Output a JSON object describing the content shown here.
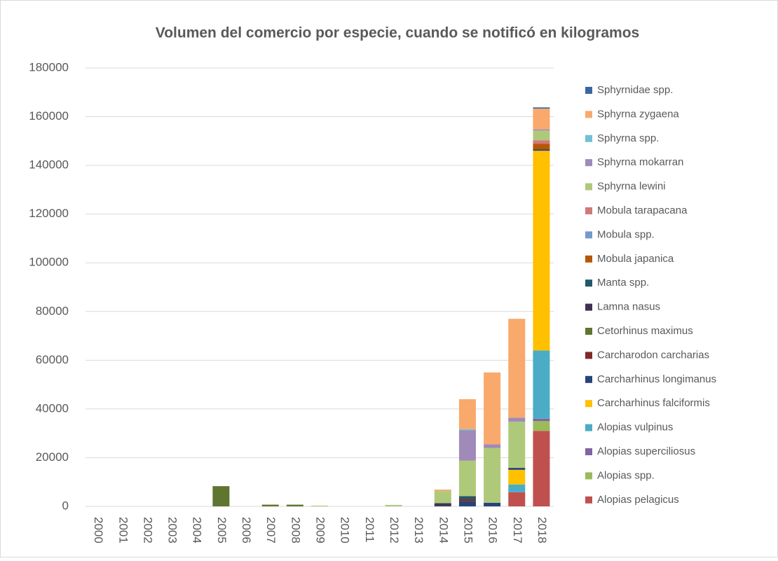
{
  "chart_data": {
    "type": "bar",
    "stacked": true,
    "title": "Volumen del comercio por especie, cuando se notificó en kilogramos",
    "categories": [
      "2000",
      "2001",
      "2002",
      "2003",
      "2004",
      "2005",
      "2006",
      "2007",
      "2008",
      "2009",
      "2010",
      "2011",
      "2012",
      "2013",
      "2014",
      "2015",
      "2016",
      "2017",
      "2018"
    ],
    "ylim": [
      0,
      180000
    ],
    "yticks": [
      0,
      20000,
      40000,
      60000,
      80000,
      100000,
      120000,
      140000,
      160000,
      180000
    ],
    "grid": true,
    "legend": "right",
    "series": [
      {
        "name": "Alopias pelagicus",
        "color": "#c0504d",
        "values": [
          0,
          0,
          0,
          0,
          0,
          0,
          0,
          0,
          0,
          0,
          0,
          0,
          0,
          0,
          0,
          0,
          0,
          5800,
          31000
        ]
      },
      {
        "name": "Alopias spp.",
        "color": "#9bbb59",
        "values": [
          0,
          0,
          0,
          0,
          0,
          0,
          0,
          0,
          0,
          0,
          0,
          0,
          0,
          0,
          0,
          0,
          0,
          0,
          4000
        ]
      },
      {
        "name": "Alopias superciliosus",
        "color": "#8064a2",
        "values": [
          0,
          0,
          0,
          0,
          0,
          0,
          0,
          0,
          0,
          0,
          0,
          0,
          0,
          0,
          0,
          0,
          0,
          0,
          1000
        ]
      },
      {
        "name": "Alopias vulpinus",
        "color": "#4bacc6",
        "values": [
          0,
          0,
          0,
          0,
          0,
          0,
          0,
          0,
          0,
          0,
          0,
          0,
          0,
          0,
          0,
          0,
          0,
          3200,
          28000
        ]
      },
      {
        "name": "Carcharhinus falciformis",
        "color": "#ffc000",
        "values": [
          0,
          0,
          0,
          0,
          0,
          0,
          0,
          0,
          0,
          0,
          0,
          0,
          0,
          0,
          0,
          0,
          0,
          6000,
          82000
        ]
      },
      {
        "name": "Carcharhinus longimanus",
        "color": "#264478",
        "values": [
          0,
          0,
          0,
          0,
          0,
          0,
          0,
          0,
          0,
          0,
          0,
          0,
          0,
          0,
          300,
          2200,
          1500,
          800,
          500
        ]
      },
      {
        "name": "Carcharodon carcharias",
        "color": "#7f2a27",
        "values": [
          0,
          0,
          0,
          0,
          0,
          0,
          0,
          0,
          0,
          0,
          0,
          0,
          0,
          0,
          0,
          800,
          0,
          0,
          0
        ]
      },
      {
        "name": "Cetorhinus maximus",
        "color": "#5f7530",
        "values": [
          0,
          0,
          0,
          0,
          0,
          8300,
          0,
          700,
          700,
          0,
          0,
          0,
          0,
          0,
          0,
          0,
          0,
          0,
          0
        ]
      },
      {
        "name": "Lamna nasus",
        "color": "#403151",
        "values": [
          0,
          0,
          0,
          0,
          0,
          0,
          0,
          0,
          0,
          0,
          0,
          0,
          0,
          0,
          1000,
          0,
          0,
          0,
          0
        ]
      },
      {
        "name": "Manta spp.",
        "color": "#215968",
        "values": [
          0,
          0,
          0,
          0,
          0,
          0,
          0,
          0,
          0,
          0,
          0,
          0,
          0,
          0,
          0,
          1200,
          0,
          0,
          0
        ]
      },
      {
        "name": "Mobula japanica",
        "color": "#b65708",
        "values": [
          0,
          0,
          0,
          0,
          0,
          0,
          0,
          0,
          0,
          0,
          0,
          0,
          0,
          0,
          0,
          0,
          0,
          0,
          2300
        ]
      },
      {
        "name": "Mobula spp.",
        "color": "#729aca",
        "values": [
          0,
          0,
          0,
          0,
          0,
          0,
          0,
          0,
          0,
          0,
          0,
          0,
          0,
          0,
          0,
          0,
          0,
          0,
          0
        ]
      },
      {
        "name": "Mobula tarapacana",
        "color": "#d07a78",
        "values": [
          0,
          0,
          0,
          0,
          0,
          0,
          0,
          0,
          0,
          0,
          0,
          0,
          0,
          0,
          0,
          0,
          0,
          0,
          1500
        ]
      },
      {
        "name": "Sphyrna lewini",
        "color": "#afc97a",
        "values": [
          0,
          0,
          0,
          0,
          0,
          0,
          0,
          0,
          0,
          300,
          0,
          0,
          600,
          0,
          5000,
          14600,
          22500,
          19000,
          4000
        ]
      },
      {
        "name": "Sphyrna mokarran",
        "color": "#9f8ab9",
        "values": [
          0,
          0,
          0,
          0,
          0,
          0,
          0,
          0,
          0,
          0,
          0,
          0,
          0,
          0,
          0,
          12400,
          1500,
          1600,
          500
        ]
      },
      {
        "name": "Sphyrna spp.",
        "color": "#70c1d6",
        "values": [
          0,
          0,
          0,
          0,
          0,
          0,
          0,
          0,
          0,
          0,
          0,
          0,
          0,
          0,
          0,
          500,
          0,
          0,
          0
        ]
      },
      {
        "name": "Sphyrna zygaena",
        "color": "#f9a96b",
        "values": [
          0,
          0,
          0,
          0,
          0,
          0,
          0,
          0,
          0,
          0,
          0,
          0,
          0,
          0,
          600,
          12300,
          29500,
          40600,
          8500
        ]
      },
      {
        "name": "Sphyrnidae spp.",
        "color": "#3a67a3",
        "values": [
          0,
          0,
          0,
          0,
          0,
          0,
          0,
          0,
          0,
          0,
          0,
          0,
          0,
          0,
          0,
          0,
          0,
          0,
          500
        ]
      }
    ]
  }
}
